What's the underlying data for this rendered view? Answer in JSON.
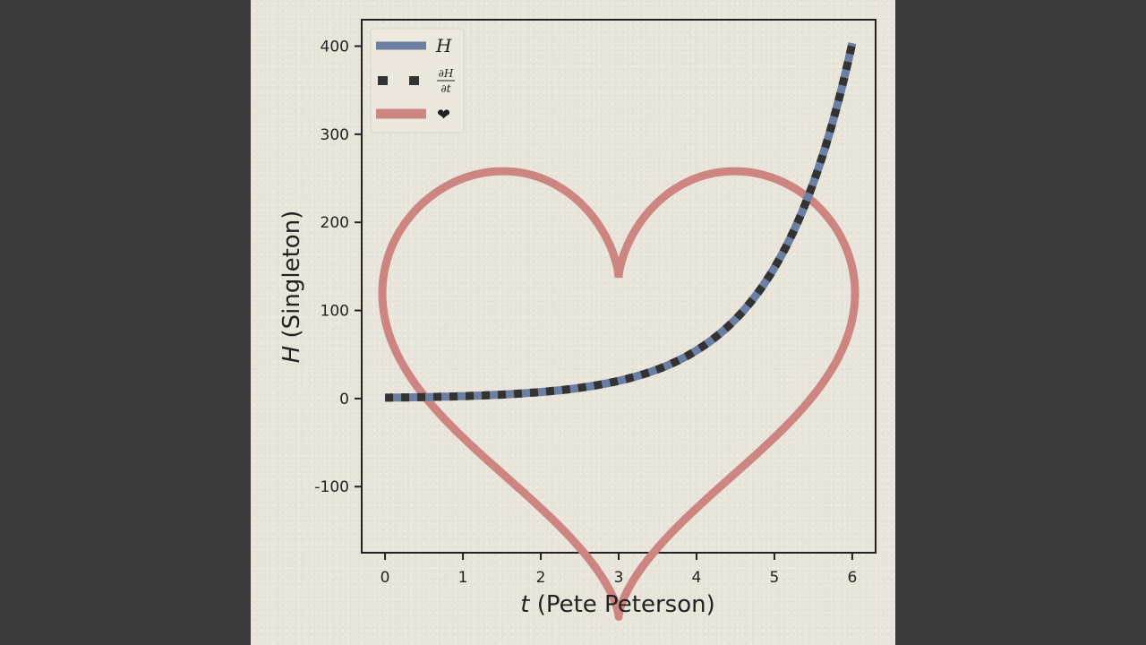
{
  "chart_data": {
    "type": "line",
    "xlabel_var": "t",
    "xlabel_text": " (Pete Peterson)",
    "ylabel_var": "H",
    "ylabel_text": " (Singleton)",
    "xlim": [
      -0.3,
      6.3
    ],
    "ylim": [
      -175,
      430
    ],
    "x_ticks": [
      "0",
      "1",
      "2",
      "3",
      "4",
      "5",
      "6"
    ],
    "y_ticks": [
      "-100",
      "0",
      "100",
      "200",
      "300",
      "400"
    ],
    "grid": false,
    "legend_position": "top-left",
    "series": [
      {
        "name": "H",
        "style": "solid",
        "color": "#6b7fa3",
        "x": [
          0,
          0.5,
          1,
          1.5,
          2,
          2.5,
          3,
          3.5,
          4,
          4.5,
          5,
          5.5,
          6
        ],
        "y": [
          1,
          1.6,
          2.7,
          4.5,
          7.4,
          12,
          20,
          33,
          55,
          90,
          148,
          245,
          403
        ]
      },
      {
        "name": "∂H/∂t",
        "name_num": "∂H",
        "name_den": "∂t",
        "style": "dotted",
        "color": "#333333",
        "x": [
          0,
          0.5,
          1,
          1.5,
          2,
          2.5,
          3,
          3.5,
          4,
          4.5,
          5,
          5.5,
          6
        ],
        "y": [
          1,
          1.6,
          2.7,
          4.5,
          7.4,
          12,
          20,
          33,
          55,
          90,
          148,
          245,
          403
        ]
      },
      {
        "name": "❤",
        "style": "solid",
        "color": "#cc8580",
        "shape": "heart",
        "center_x": 3,
        "center_y": 75
      }
    ]
  }
}
